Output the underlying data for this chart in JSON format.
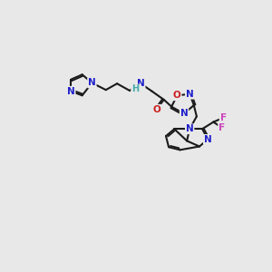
{
  "background_color": "#e8e8e8",
  "bond_color": "#1a1a1a",
  "atom_colors": {
    "N": "#2020cc",
    "O": "#cc2020",
    "F": "#cc44bb",
    "H": "#44aaaa",
    "C": "#1a1a1a"
  },
  "figsize": [
    3.0,
    3.0
  ],
  "dpi": 100
}
